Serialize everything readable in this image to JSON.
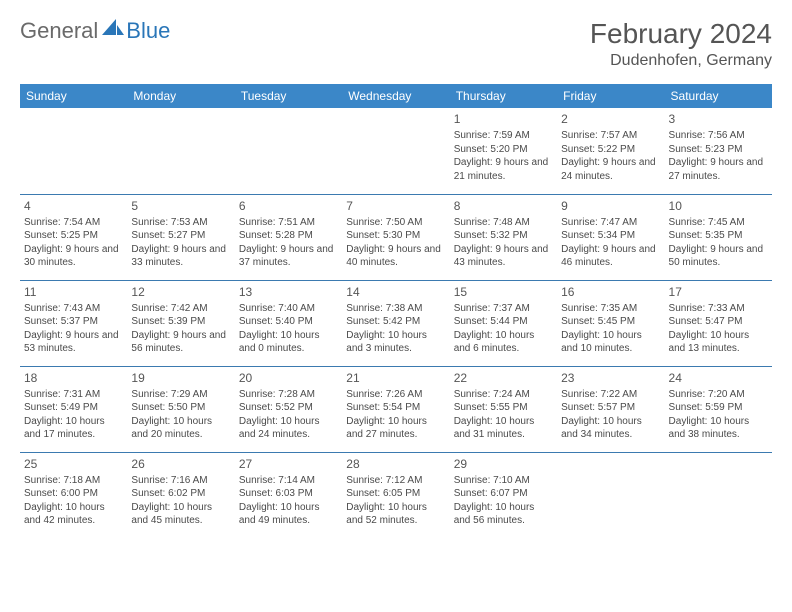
{
  "logo": {
    "general": "General",
    "blue": "Blue"
  },
  "title": "February 2024",
  "location": "Dudenhofen, Germany",
  "colors": {
    "header_bg": "#3b87c8",
    "header_text": "#ffffff",
    "row_border": "#3b7ab0",
    "body_text": "#4a4a4a",
    "title_text": "#555555",
    "logo_gray": "#6a6a6a",
    "logo_blue": "#2a76b8"
  },
  "weekdays": [
    "Sunday",
    "Monday",
    "Tuesday",
    "Wednesday",
    "Thursday",
    "Friday",
    "Saturday"
  ],
  "weeks": [
    [
      null,
      null,
      null,
      null,
      {
        "day": "1",
        "sunrise": "Sunrise: 7:59 AM",
        "sunset": "Sunset: 5:20 PM",
        "daylight": "Daylight: 9 hours and 21 minutes."
      },
      {
        "day": "2",
        "sunrise": "Sunrise: 7:57 AM",
        "sunset": "Sunset: 5:22 PM",
        "daylight": "Daylight: 9 hours and 24 minutes."
      },
      {
        "day": "3",
        "sunrise": "Sunrise: 7:56 AM",
        "sunset": "Sunset: 5:23 PM",
        "daylight": "Daylight: 9 hours and 27 minutes."
      }
    ],
    [
      {
        "day": "4",
        "sunrise": "Sunrise: 7:54 AM",
        "sunset": "Sunset: 5:25 PM",
        "daylight": "Daylight: 9 hours and 30 minutes."
      },
      {
        "day": "5",
        "sunrise": "Sunrise: 7:53 AM",
        "sunset": "Sunset: 5:27 PM",
        "daylight": "Daylight: 9 hours and 33 minutes."
      },
      {
        "day": "6",
        "sunrise": "Sunrise: 7:51 AM",
        "sunset": "Sunset: 5:28 PM",
        "daylight": "Daylight: 9 hours and 37 minutes."
      },
      {
        "day": "7",
        "sunrise": "Sunrise: 7:50 AM",
        "sunset": "Sunset: 5:30 PM",
        "daylight": "Daylight: 9 hours and 40 minutes."
      },
      {
        "day": "8",
        "sunrise": "Sunrise: 7:48 AM",
        "sunset": "Sunset: 5:32 PM",
        "daylight": "Daylight: 9 hours and 43 minutes."
      },
      {
        "day": "9",
        "sunrise": "Sunrise: 7:47 AM",
        "sunset": "Sunset: 5:34 PM",
        "daylight": "Daylight: 9 hours and 46 minutes."
      },
      {
        "day": "10",
        "sunrise": "Sunrise: 7:45 AM",
        "sunset": "Sunset: 5:35 PM",
        "daylight": "Daylight: 9 hours and 50 minutes."
      }
    ],
    [
      {
        "day": "11",
        "sunrise": "Sunrise: 7:43 AM",
        "sunset": "Sunset: 5:37 PM",
        "daylight": "Daylight: 9 hours and 53 minutes."
      },
      {
        "day": "12",
        "sunrise": "Sunrise: 7:42 AM",
        "sunset": "Sunset: 5:39 PM",
        "daylight": "Daylight: 9 hours and 56 minutes."
      },
      {
        "day": "13",
        "sunrise": "Sunrise: 7:40 AM",
        "sunset": "Sunset: 5:40 PM",
        "daylight": "Daylight: 10 hours and 0 minutes."
      },
      {
        "day": "14",
        "sunrise": "Sunrise: 7:38 AM",
        "sunset": "Sunset: 5:42 PM",
        "daylight": "Daylight: 10 hours and 3 minutes."
      },
      {
        "day": "15",
        "sunrise": "Sunrise: 7:37 AM",
        "sunset": "Sunset: 5:44 PM",
        "daylight": "Daylight: 10 hours and 6 minutes."
      },
      {
        "day": "16",
        "sunrise": "Sunrise: 7:35 AM",
        "sunset": "Sunset: 5:45 PM",
        "daylight": "Daylight: 10 hours and 10 minutes."
      },
      {
        "day": "17",
        "sunrise": "Sunrise: 7:33 AM",
        "sunset": "Sunset: 5:47 PM",
        "daylight": "Daylight: 10 hours and 13 minutes."
      }
    ],
    [
      {
        "day": "18",
        "sunrise": "Sunrise: 7:31 AM",
        "sunset": "Sunset: 5:49 PM",
        "daylight": "Daylight: 10 hours and 17 minutes."
      },
      {
        "day": "19",
        "sunrise": "Sunrise: 7:29 AM",
        "sunset": "Sunset: 5:50 PM",
        "daylight": "Daylight: 10 hours and 20 minutes."
      },
      {
        "day": "20",
        "sunrise": "Sunrise: 7:28 AM",
        "sunset": "Sunset: 5:52 PM",
        "daylight": "Daylight: 10 hours and 24 minutes."
      },
      {
        "day": "21",
        "sunrise": "Sunrise: 7:26 AM",
        "sunset": "Sunset: 5:54 PM",
        "daylight": "Daylight: 10 hours and 27 minutes."
      },
      {
        "day": "22",
        "sunrise": "Sunrise: 7:24 AM",
        "sunset": "Sunset: 5:55 PM",
        "daylight": "Daylight: 10 hours and 31 minutes."
      },
      {
        "day": "23",
        "sunrise": "Sunrise: 7:22 AM",
        "sunset": "Sunset: 5:57 PM",
        "daylight": "Daylight: 10 hours and 34 minutes."
      },
      {
        "day": "24",
        "sunrise": "Sunrise: 7:20 AM",
        "sunset": "Sunset: 5:59 PM",
        "daylight": "Daylight: 10 hours and 38 minutes."
      }
    ],
    [
      {
        "day": "25",
        "sunrise": "Sunrise: 7:18 AM",
        "sunset": "Sunset: 6:00 PM",
        "daylight": "Daylight: 10 hours and 42 minutes."
      },
      {
        "day": "26",
        "sunrise": "Sunrise: 7:16 AM",
        "sunset": "Sunset: 6:02 PM",
        "daylight": "Daylight: 10 hours and 45 minutes."
      },
      {
        "day": "27",
        "sunrise": "Sunrise: 7:14 AM",
        "sunset": "Sunset: 6:03 PM",
        "daylight": "Daylight: 10 hours and 49 minutes."
      },
      {
        "day": "28",
        "sunrise": "Sunrise: 7:12 AM",
        "sunset": "Sunset: 6:05 PM",
        "daylight": "Daylight: 10 hours and 52 minutes."
      },
      {
        "day": "29",
        "sunrise": "Sunrise: 7:10 AM",
        "sunset": "Sunset: 6:07 PM",
        "daylight": "Daylight: 10 hours and 56 minutes."
      },
      null,
      null
    ]
  ]
}
